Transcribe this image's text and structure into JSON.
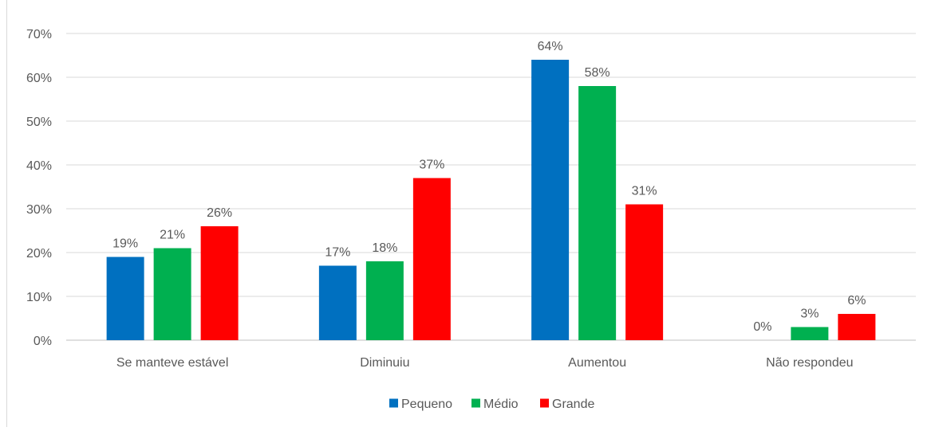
{
  "chart_data": {
    "type": "bar",
    "title": "",
    "xlabel": "",
    "ylabel": "",
    "ylim": [
      0,
      70
    ],
    "yticks": [
      0,
      10,
      20,
      30,
      40,
      50,
      60,
      70
    ],
    "ytick_labels": [
      "0%",
      "10%",
      "20%",
      "30%",
      "40%",
      "50%",
      "60%",
      "70%"
    ],
    "grid": true,
    "legend_position": "bottom",
    "categories": [
      "Se manteve estável",
      "Diminuiu",
      "Aumentou",
      "Não respondeu"
    ],
    "series": [
      {
        "name": "Pequeno",
        "color": "#0070C0",
        "values": [
          19,
          17,
          64,
          0
        ],
        "labels": [
          "19%",
          "17%",
          "64%",
          "0%"
        ]
      },
      {
        "name": "Médio",
        "color": "#00B050",
        "values": [
          21,
          18,
          58,
          3
        ],
        "labels": [
          "21%",
          "18%",
          "58%",
          "3%"
        ]
      },
      {
        "name": "Grande",
        "color": "#FF0000",
        "values": [
          26,
          37,
          31,
          6
        ],
        "labels": [
          "26%",
          "37%",
          "31%",
          "6%"
        ]
      }
    ],
    "colors": {
      "text": "#595959",
      "grid": "#d9d9d9",
      "axis": "#bfbfbf"
    }
  }
}
